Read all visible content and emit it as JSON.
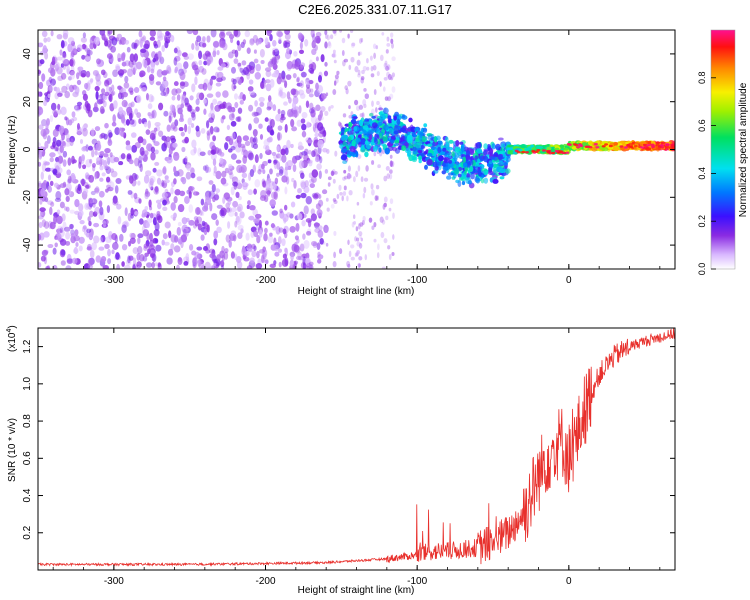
{
  "title": "C2E6.2025.331.07.11.G17",
  "colors": {
    "spectrum_base": "#7a2cf0",
    "snr_line": "#e8302c",
    "axis": "#000000"
  },
  "chart_data": [
    {
      "type": "heatmap",
      "name": "radio-occultation-spectrogram",
      "xlabel": "Height of straight line (km)",
      "ylabel": "Frequency (Hz)",
      "xlim": [
        -350,
        70
      ],
      "ylim": [
        -50,
        50
      ],
      "xticks": [
        -300,
        -200,
        -100,
        0
      ],
      "xtick_labels": [
        "-300",
        "-200",
        "-100",
        "0"
      ],
      "yticks": [
        -40,
        -20,
        0,
        20,
        40
      ],
      "ytick_labels": [
        "-40",
        "-20",
        "0",
        "20",
        "40"
      ],
      "colorbar": {
        "label": "Normalized spectral amplitude",
        "range": [
          0,
          1
        ],
        "ticks": [
          0.0,
          0.2,
          0.4,
          0.6,
          0.8
        ],
        "tick_labels": [
          "0.0",
          "0.2",
          "0.4",
          "0.6",
          "0.8"
        ],
        "colormap": "rainbow (violet-blue-cyan-green-yellow-orange-red-magenta)"
      },
      "regions": [
        {
          "x_range": [
            -350,
            -160
          ],
          "freq_range": [
            -50,
            50
          ],
          "amplitude": 0.05,
          "pattern": "scattered noise"
        },
        {
          "x_range": [
            -160,
            -115
          ],
          "freq_range": [
            -50,
            50
          ],
          "amplitude": 0.03,
          "pattern": "sparse noise"
        },
        {
          "x_range": [
            -150,
            -40
          ],
          "freq_center": 3,
          "freq_spread": 12,
          "amplitude": 0.3,
          "pattern": "turbulent signal band"
        },
        {
          "x_range": [
            -40,
            70
          ],
          "freq_center": 1,
          "freq_spread": 3,
          "amplitude": 0.8,
          "pattern": "narrow coherent signal"
        }
      ]
    },
    {
      "type": "line",
      "name": "snr-profile",
      "xlabel": "Height of straight line (km)",
      "ylabel": "SNR (10 * v/v)",
      "y_multiplier_label": "(x10",
      "y_multiplier_exp": "4",
      "y_multiplier_close": ")",
      "xlim": [
        -350,
        70
      ],
      "ylim": [
        0,
        1.3
      ],
      "xticks": [
        -300,
        -200,
        -100,
        0
      ],
      "xtick_labels": [
        "-300",
        "-200",
        "-100",
        "0"
      ],
      "yticks": [
        0.2,
        0.4,
        0.6,
        0.8,
        1.0,
        1.2
      ],
      "ytick_labels": [
        "0.2",
        "0.4",
        "0.6",
        "0.8",
        "1.0",
        "1.2"
      ],
      "series": [
        {
          "x": [
            -350,
            -300,
            -250,
            -200,
            -160,
            -140,
            -120,
            -100,
            -90,
            -80,
            -70,
            -60,
            -50,
            -40,
            -35,
            -30,
            -25,
            -20,
            -15,
            -10,
            -5,
            0,
            5,
            10,
            15,
            20,
            30,
            40,
            50,
            60,
            70
          ],
          "y": [
            0.03,
            0.03,
            0.03,
            0.035,
            0.04,
            0.05,
            0.06,
            0.08,
            0.1,
            0.1,
            0.11,
            0.12,
            0.15,
            0.2,
            0.25,
            0.3,
            0.4,
            0.5,
            0.6,
            0.65,
            0.7,
            0.6,
            0.7,
            0.85,
            0.95,
            1.05,
            1.15,
            1.2,
            1.23,
            1.25,
            1.27
          ]
        }
      ]
    }
  ]
}
